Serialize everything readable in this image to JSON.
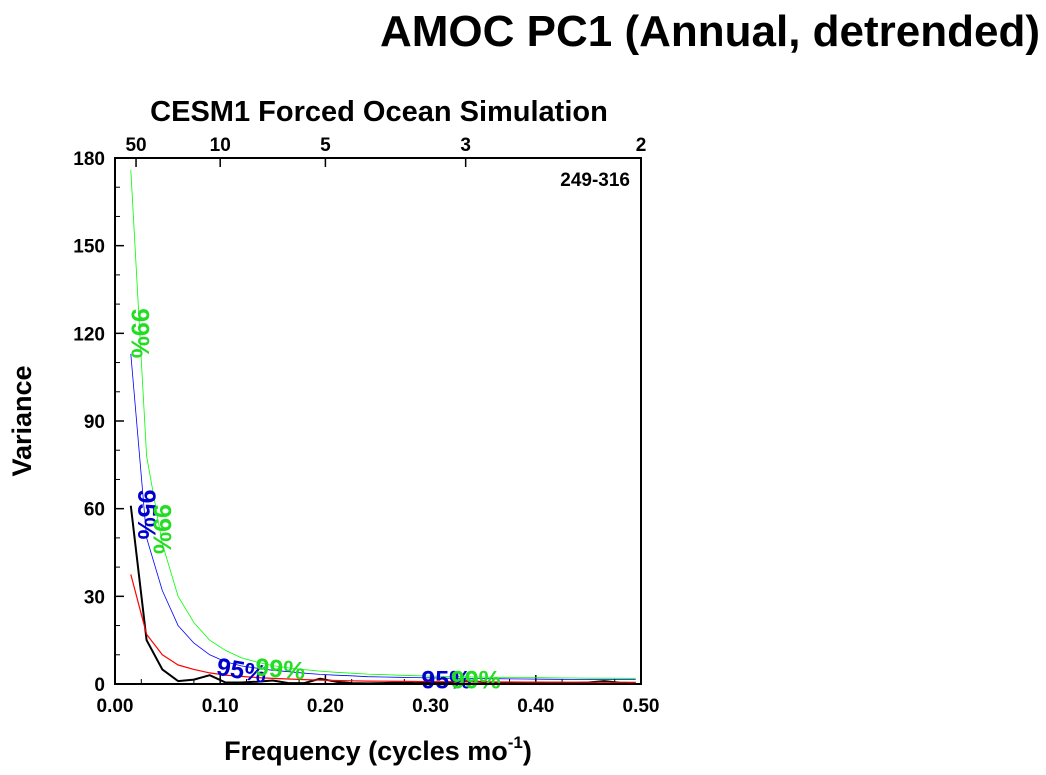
{
  "chart_data": {
    "type": "line",
    "title": "AMOC PC1 (Annual, detrended)",
    "subtitle": "CESM1 Forced Ocean Simulation",
    "annotation": "249-316",
    "xlabel": "Frequency (cycles mo",
    "xlabel_sup": "-1",
    "xlabel_end": ")",
    "ylabel": "Variance",
    "xlim": [
      0,
      0.5
    ],
    "ylim": [
      0,
      180
    ],
    "x_ticks": [
      0.0,
      0.1,
      0.2,
      0.3,
      0.4,
      0.5
    ],
    "x_tick_labels": [
      "0.00",
      "0.10",
      "0.20",
      "0.30",
      "0.40",
      "0.50"
    ],
    "y_ticks": [
      0,
      30,
      60,
      90,
      120,
      150,
      180
    ],
    "y_tick_labels": [
      "0",
      "30",
      "60",
      "90",
      "120",
      "150",
      "180"
    ],
    "top_axis_ticks": [
      {
        "period": 50,
        "label": "50"
      },
      {
        "period": 10,
        "label": "10"
      },
      {
        "period": 5,
        "label": "5"
      },
      {
        "period": 3,
        "label": "3"
      },
      {
        "period": 2,
        "label": "2"
      }
    ],
    "x": [
      0.015,
      0.03,
      0.045,
      0.06,
      0.075,
      0.09,
      0.105,
      0.12,
      0.135,
      0.15,
      0.165,
      0.18,
      0.195,
      0.21,
      0.225,
      0.24,
      0.255,
      0.27,
      0.285,
      0.3,
      0.315,
      0.33,
      0.345,
      0.36,
      0.375,
      0.39,
      0.405,
      0.42,
      0.435,
      0.45,
      0.465,
      0.48,
      0.495
    ],
    "series": [
      {
        "key": "spectrum",
        "color": "#000000",
        "width": 2,
        "values": [
          61,
          15,
          5,
          1,
          1.5,
          3,
          0.5,
          0.5,
          0.8,
          1.2,
          0.3,
          0.3,
          1.8,
          0.8,
          0.3,
          0.2,
          0.3,
          0.5,
          0.3,
          0.4,
          0.5,
          1.0,
          0.8,
          0.5,
          0.4,
          0.3,
          0.2,
          0.4,
          0.3,
          0.5,
          1.0,
          0.4,
          0.3
        ]
      },
      {
        "key": "red-noise",
        "color": "#ff0000",
        "width": 1.2,
        "values": [
          37.5,
          17,
          10,
          6.5,
          5,
          3.8,
          3.0,
          2.6,
          2.2,
          1.9,
          1.7,
          1.5,
          1.35,
          1.2,
          1.1,
          1.0,
          0.95,
          0.9,
          0.85,
          0.8,
          0.78,
          0.75,
          0.72,
          0.7,
          0.68,
          0.66,
          0.64,
          0.62,
          0.61,
          0.6,
          0.59,
          0.58,
          0.57
        ]
      },
      {
        "key": "95-percent",
        "color": "#0000ff",
        "width": 0.8,
        "values": [
          113,
          50,
          32,
          20,
          14,
          10,
          7.6,
          6.2,
          5.4,
          4.7,
          4.2,
          3.7,
          3.3,
          3.0,
          2.8,
          2.5,
          2.4,
          2.3,
          2.2,
          2.1,
          2.0,
          1.9,
          1.85,
          1.8,
          1.75,
          1.7,
          1.65,
          1.6,
          1.58,
          1.56,
          1.54,
          1.52,
          1.5
        ]
      },
      {
        "key": "99-percent",
        "color": "#00ff00",
        "width": 0.8,
        "values": [
          176,
          78,
          48,
          30,
          21,
          15,
          11.5,
          9,
          7.5,
          6.3,
          5.5,
          4.9,
          4.4,
          4.0,
          3.7,
          3.4,
          3.2,
          3.0,
          2.85,
          2.7,
          2.6,
          2.5,
          2.4,
          2.3,
          2.25,
          2.2,
          2.15,
          2.1,
          2.05,
          2.0,
          1.98,
          1.96,
          1.95
        ]
      }
    ],
    "line_labels": [
      {
        "text": "99%",
        "color": "#22dd22",
        "x": 0.022,
        "y": 120,
        "rotate": 90
      },
      {
        "text": "95%",
        "color": "#0000cc",
        "x": 0.028,
        "y": 58,
        "rotate": 90
      },
      {
        "text": "99%",
        "color": "#22dd22",
        "x": 0.043,
        "y": 53,
        "rotate": 90
      },
      {
        "text": "95%",
        "color": "#0000cc",
        "x": 0.12,
        "y": 4,
        "rotate": 10
      },
      {
        "text": "99%",
        "color": "#22dd22",
        "x": 0.157,
        "y": 4.5,
        "rotate": 5
      },
      {
        "text": "95%",
        "color": "#0000cc",
        "x": 0.315,
        "y": 0.8,
        "rotate": 0
      },
      {
        "text": "99%",
        "color": "#22dd22",
        "x": 0.343,
        "y": 0.8,
        "rotate": 0
      }
    ]
  }
}
